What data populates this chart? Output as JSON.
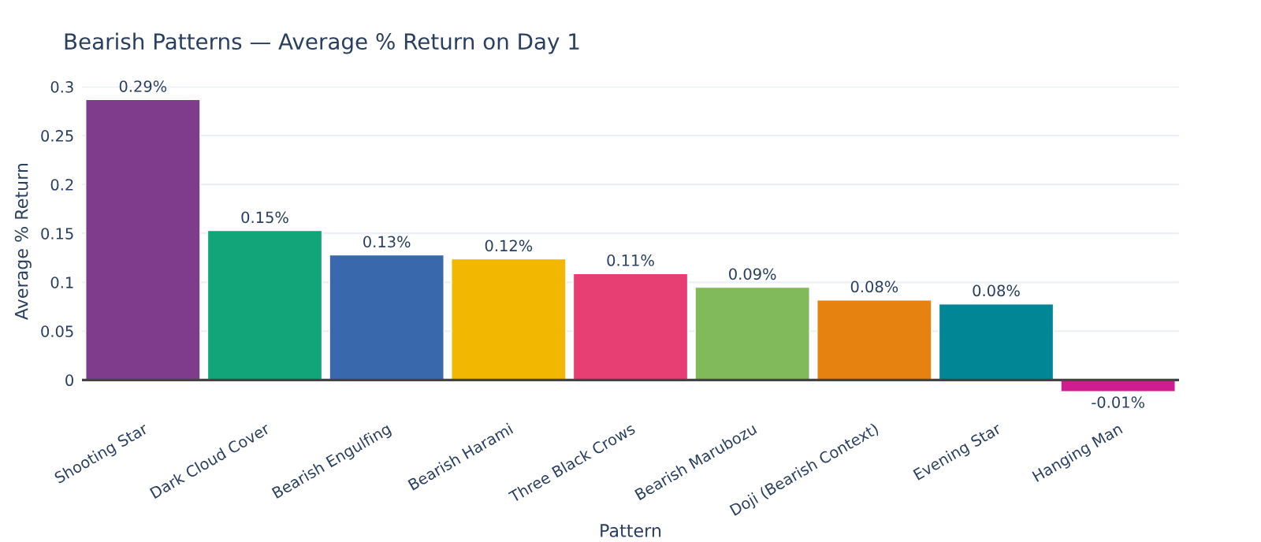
{
  "chart_data": {
    "type": "bar",
    "title": "Bearish Patterns — Average % Return on Day 1",
    "xlabel": "Pattern",
    "ylabel": "Average % Return",
    "categories": [
      "Shooting Star",
      "Dark Cloud Cover",
      "Bearish Engulfing",
      "Bearish Harami",
      "Three Black Crows",
      "Bearish Marubozu",
      "Doji (Bearish Context)",
      "Evening Star",
      "Hanging Man"
    ],
    "values": [
      0.287,
      0.153,
      0.128,
      0.124,
      0.109,
      0.095,
      0.082,
      0.078,
      -0.012
    ],
    "colors": [
      "#7f3c8d",
      "#11a579",
      "#3969ac",
      "#f2b701",
      "#e73f74",
      "#80ba5a",
      "#e68310",
      "#008695",
      "#cf1c90"
    ],
    "value_labels": [
      "0.29%",
      "0.15%",
      "0.13%",
      "0.12%",
      "0.11%",
      "0.09%",
      "0.08%",
      "0.08%",
      "-0.01%"
    ],
    "ylim": [
      -0.016,
      0.3
    ],
    "yticks": [
      0,
      0.05,
      0.1,
      0.15,
      0.2,
      0.25,
      0.3
    ],
    "grid": "y"
  }
}
